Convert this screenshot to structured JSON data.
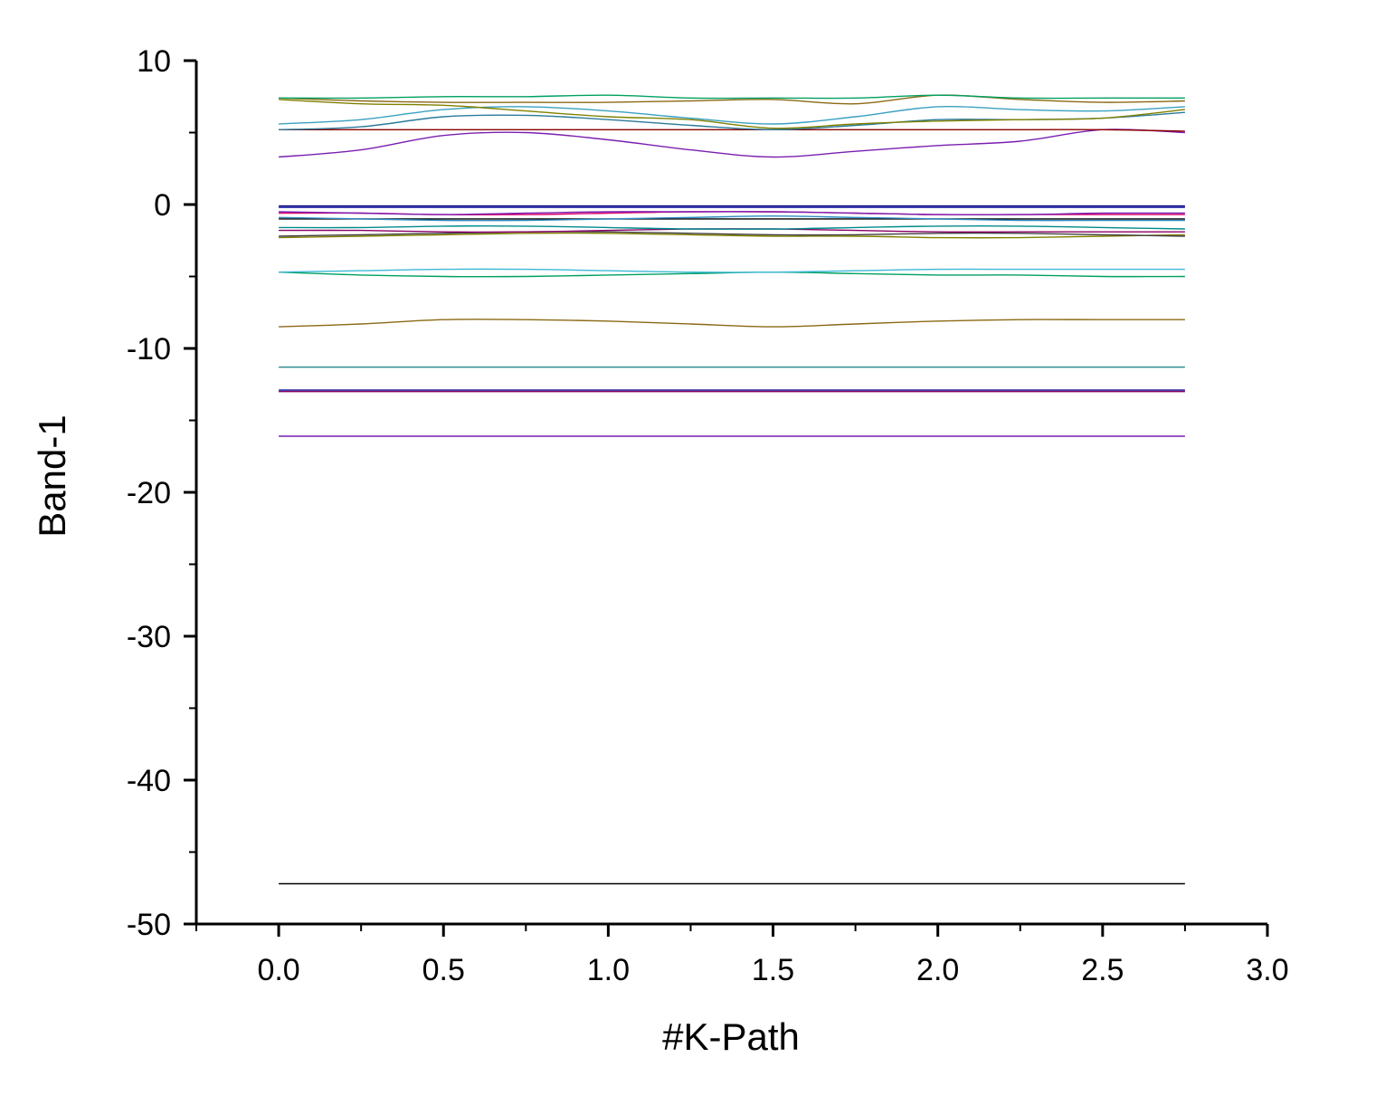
{
  "chart_data": {
    "type": "line",
    "title": "",
    "xlabel": "#K-Path",
    "ylabel": "Band-1",
    "xlim": [
      -0.25,
      3.0
    ],
    "ylim": [
      -50,
      10
    ],
    "x_ticks": [
      "0.0",
      "0.5",
      "1.0",
      "1.5",
      "2.0",
      "2.5",
      "3.0"
    ],
    "y_ticks": [
      "10",
      "0",
      "-10",
      "-20",
      "-30",
      "-40",
      "-50"
    ],
    "grid": false,
    "legend": "none",
    "x": [
      0.0,
      0.25,
      0.5,
      0.75,
      1.0,
      1.25,
      1.5,
      1.75,
      2.0,
      2.25,
      2.5,
      2.75
    ],
    "series": [
      {
        "color": "#000000",
        "values": [
          -47.2,
          -47.2,
          -47.2,
          -47.2,
          -47.2,
          -47.2,
          -47.2,
          -47.2,
          -47.2,
          -47.2,
          -47.2,
          -47.2
        ]
      },
      {
        "color": "#7a1fb0",
        "values": [
          -16.1,
          -16.1,
          -16.1,
          -16.1,
          -16.1,
          -16.1,
          -16.1,
          -16.1,
          -16.1,
          -16.1,
          -16.1,
          -16.1
        ]
      },
      {
        "color": "#8b0066",
        "values": [
          -13.0,
          -13.0,
          -13.0,
          -13.0,
          -13.0,
          -13.0,
          -13.0,
          -13.0,
          -13.0,
          -13.0,
          -13.0,
          -13.0
        ]
      },
      {
        "color": "#00008b",
        "values": [
          -12.9,
          -12.9,
          -12.9,
          -12.9,
          -12.9,
          -12.9,
          -12.9,
          -12.9,
          -12.9,
          -12.9,
          -12.9,
          -12.9
        ]
      },
      {
        "color": "#2a8a8a",
        "values": [
          -11.3,
          -11.3,
          -11.3,
          -11.3,
          -11.3,
          -11.3,
          -11.3,
          -11.3,
          -11.3,
          -11.3,
          -11.3,
          -11.3
        ]
      },
      {
        "color": "#8b6914",
        "values": [
          -8.5,
          -8.3,
          -8.0,
          -8.0,
          -8.1,
          -8.3,
          -8.5,
          -8.3,
          -8.1,
          -8.0,
          -8.0,
          -8.0
        ]
      },
      {
        "color": "#00a060",
        "values": [
          -4.7,
          -4.9,
          -5.0,
          -5.0,
          -4.9,
          -4.8,
          -4.7,
          -4.8,
          -4.9,
          -4.9,
          -5.0,
          -5.0
        ]
      },
      {
        "color": "#3cb8d8",
        "values": [
          -4.7,
          -4.6,
          -4.5,
          -4.5,
          -4.6,
          -4.7,
          -4.7,
          -4.6,
          -4.5,
          -4.5,
          -4.5,
          -4.5
        ]
      },
      {
        "color": "#808000",
        "values": [
          -2.3,
          -2.2,
          -2.1,
          -2.0,
          -2.0,
          -2.1,
          -2.2,
          -2.2,
          -2.3,
          -2.3,
          -2.2,
          -2.1
        ]
      },
      {
        "color": "#404040",
        "values": [
          -2.2,
          -2.1,
          -2.0,
          -1.9,
          -1.9,
          -2.0,
          -2.1,
          -2.1,
          -2.0,
          -2.0,
          -2.1,
          -2.2
        ]
      },
      {
        "color": "#8b0066",
        "values": [
          -1.8,
          -1.8,
          -1.9,
          -1.9,
          -1.8,
          -1.7,
          -1.7,
          -1.8,
          -1.9,
          -1.9,
          -1.9,
          -1.9
        ]
      },
      {
        "color": "#008b8b",
        "values": [
          -1.6,
          -1.6,
          -1.5,
          -1.5,
          -1.6,
          -1.7,
          -1.7,
          -1.6,
          -1.5,
          -1.5,
          -1.6,
          -1.7
        ]
      },
      {
        "color": "#000000",
        "values": [
          -1.0,
          -1.0,
          -1.0,
          -1.0,
          -1.0,
          -1.0,
          -1.0,
          -1.0,
          -1.0,
          -1.0,
          -1.0,
          -1.0
        ]
      },
      {
        "color": "#2e8bc0",
        "values": [
          -0.9,
          -1.0,
          -1.1,
          -1.1,
          -1.0,
          -0.9,
          -0.8,
          -0.9,
          -1.0,
          -1.1,
          -1.1,
          -1.1
        ]
      },
      {
        "color": "#e0006a",
        "values": [
          -0.6,
          -0.6,
          -0.7,
          -0.7,
          -0.6,
          -0.5,
          -0.5,
          -0.6,
          -0.7,
          -0.7,
          -0.7,
          -0.7
        ]
      },
      {
        "color": "#7a1fb0",
        "values": [
          -0.5,
          -0.6,
          -0.7,
          -0.6,
          -0.5,
          -0.5,
          -0.5,
          -0.6,
          -0.7,
          -0.7,
          -0.6,
          -0.6
        ]
      },
      {
        "color": "#000080",
        "values": [
          -0.1,
          -0.1,
          -0.1,
          -0.1,
          -0.1,
          -0.1,
          -0.1,
          -0.1,
          -0.1,
          -0.1,
          -0.1,
          -0.1
        ]
      },
      {
        "color": "#1a1aa0",
        "values": [
          -0.2,
          -0.2,
          -0.2,
          -0.2,
          -0.2,
          -0.2,
          -0.2,
          -0.2,
          -0.2,
          -0.2,
          -0.2,
          -0.2
        ]
      },
      {
        "color": "#7a1fb0",
        "values": [
          3.3,
          3.8,
          4.8,
          5.0,
          4.5,
          3.8,
          3.3,
          3.7,
          4.1,
          4.4,
          5.2,
          5.0
        ]
      },
      {
        "color": "#8b0000",
        "values": [
          5.2,
          5.2,
          5.2,
          5.2,
          5.2,
          5.2,
          5.2,
          5.2,
          5.2,
          5.2,
          5.2,
          5.1
        ]
      },
      {
        "color": "#2a7a9a",
        "values": [
          5.2,
          5.4,
          6.1,
          6.2,
          5.9,
          5.5,
          5.2,
          5.5,
          5.9,
          5.9,
          6.0,
          6.4
        ]
      },
      {
        "color": "#3aa0c0",
        "values": [
          5.6,
          5.9,
          6.6,
          6.8,
          6.5,
          6.0,
          5.6,
          6.1,
          6.8,
          6.6,
          6.5,
          6.8
        ]
      },
      {
        "color": "#808000",
        "values": [
          7.3,
          7.0,
          6.9,
          6.5,
          6.1,
          5.9,
          5.3,
          5.6,
          5.8,
          5.9,
          6.0,
          6.6
        ]
      },
      {
        "color": "#8b6914",
        "values": [
          7.4,
          7.2,
          7.1,
          7.1,
          7.1,
          7.2,
          7.3,
          7.0,
          7.6,
          7.3,
          7.1,
          7.2
        ]
      },
      {
        "color": "#00a060",
        "values": [
          7.4,
          7.4,
          7.5,
          7.5,
          7.6,
          7.4,
          7.4,
          7.4,
          7.6,
          7.4,
          7.4,
          7.4
        ]
      }
    ]
  }
}
